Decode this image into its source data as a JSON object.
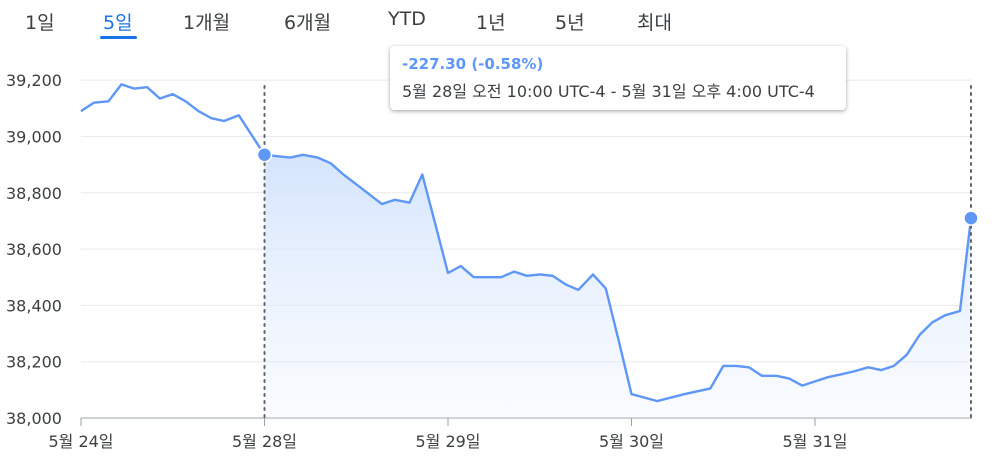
{
  "tabs": [
    {
      "label": "1일",
      "active": false
    },
    {
      "label": "5일",
      "active": true
    },
    {
      "label": "1개월",
      "active": false
    },
    {
      "label": "6개월",
      "active": false
    },
    {
      "label": "YTD",
      "active": false
    },
    {
      "label": "1년",
      "active": false
    },
    {
      "label": "5년",
      "active": false
    },
    {
      "label": "최대",
      "active": false
    }
  ],
  "tooltip": {
    "change": "-227.30 (-0.58%)",
    "range": "5월 28일 오전 10:00 UTC-4 - 5월 31일 오후 4:00 UTC-4"
  },
  "colors": {
    "line": "#5e97f6",
    "accent": "#1a73e8",
    "fill": "#d2e3fc"
  },
  "chart_data": {
    "type": "area",
    "title": "",
    "xlabel": "",
    "ylabel": "",
    "ylim": [
      38000,
      39300
    ],
    "y_ticks": [
      38000,
      38200,
      38400,
      38600,
      38800,
      39000,
      39200
    ],
    "y_tick_labels": [
      "38,000",
      "38,200",
      "38,400",
      "38,600",
      "38,800",
      "39,000",
      "39,200"
    ],
    "x_ticks": [
      {
        "label": "5월 24일",
        "x": 0
      },
      {
        "label": "5월 28일",
        "x": 1
      },
      {
        "label": "5월 29일",
        "x": 2
      },
      {
        "label": "5월 30일",
        "x": 3
      },
      {
        "label": "5월 31일",
        "x": 4
      }
    ],
    "grid": true,
    "selection": {
      "start_x": 1,
      "end_x": 4.85
    },
    "series": [
      {
        "x": [
          0,
          0.07,
          0.15,
          0.22,
          0.29,
          0.36,
          0.43,
          0.5,
          0.57,
          0.64,
          0.71,
          0.78,
          0.86,
          0.93,
          1,
          1.07,
          1.14,
          1.21,
          1.29,
          1.36,
          1.43,
          1.5,
          1.57,
          1.64,
          1.71,
          1.79,
          1.86,
          1.93,
          2,
          2.07,
          2.14,
          2.21,
          2.29,
          2.36,
          2.43,
          2.5,
          2.57,
          2.64,
          2.71,
          2.79,
          2.86,
          2.93,
          3,
          3.14,
          3.29,
          3.43,
          3.5,
          3.57,
          3.64,
          3.71,
          3.79,
          3.86,
          3.93,
          4,
          4.07,
          4.14,
          4.21,
          4.29,
          4.36,
          4.43,
          4.5,
          4.57,
          4.64,
          4.71,
          4.79,
          4.85
        ],
        "values": [
          39090,
          39120,
          39125,
          39185,
          39170,
          39175,
          39135,
          39150,
          39125,
          39090,
          39065,
          39055,
          39075,
          39005,
          38935,
          38930,
          38925,
          38935,
          38925,
          38905,
          38865,
          38830,
          38795,
          38760,
          38775,
          38765,
          38865,
          38690,
          38515,
          38540,
          38500,
          38500,
          38500,
          38520,
          38505,
          38510,
          38505,
          38475,
          38455,
          38510,
          38460,
          38275,
          38085,
          38060,
          38085,
          38105,
          38185,
          38185,
          38180,
          38150,
          38150,
          38140,
          38115,
          38130,
          38145,
          38155,
          38165,
          38180,
          38170,
          38185,
          38225,
          38295,
          38340,
          38365,
          38380,
          38710
        ]
      }
    ]
  }
}
